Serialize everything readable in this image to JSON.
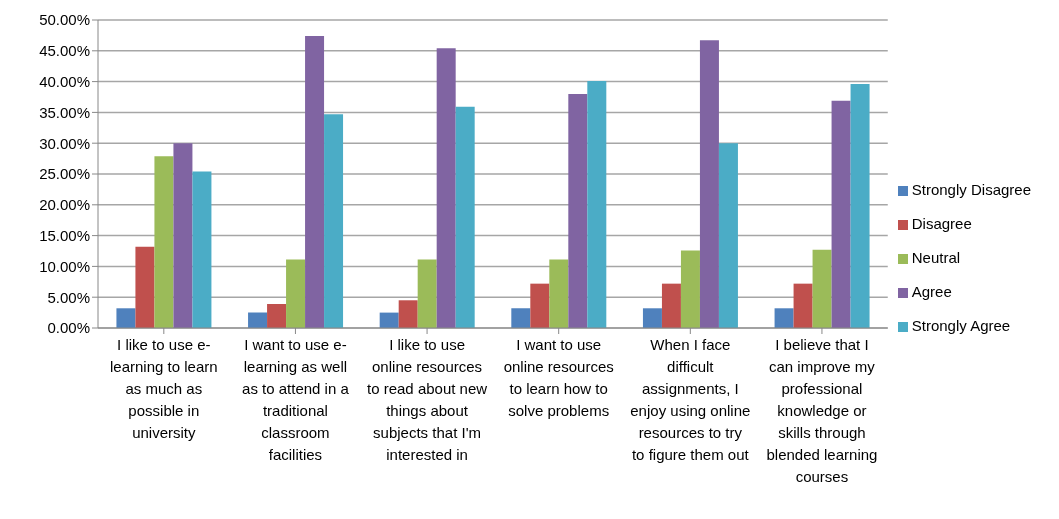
{
  "chart_data": {
    "type": "bar",
    "categories": [
      "I like to use e-learning to learn as much as possible in university",
      "I want to use e-learning as well as to attend in a traditional classroom facilities",
      "I like to use online resources to read about new things about subjects that I'm interested in",
      "I want to use online resources to learn how to solve problems",
      "When I face difficult assignments, I enjoy using online resources to try to figure them out",
      "I believe that I can improve my professional knowledge or skills through blended learning courses"
    ],
    "series": [
      {
        "name": "Strongly Disagree",
        "color": "#4f81bd",
        "values": [
          3.2,
          2.5,
          2.5,
          3.2,
          3.2,
          3.2
        ]
      },
      {
        "name": "Disagree",
        "color": "#c0504d",
        "values": [
          13.2,
          3.9,
          4.5,
          7.2,
          7.2,
          7.2
        ]
      },
      {
        "name": "Neutral",
        "color": "#9bbb59",
        "values": [
          27.9,
          11.1,
          11.1,
          11.1,
          12.6,
          12.7
        ]
      },
      {
        "name": "Agree",
        "color": "#8064a2",
        "values": [
          30.0,
          47.4,
          45.4,
          38.0,
          46.7,
          36.9
        ]
      },
      {
        "name": "Strongly Agree",
        "color": "#4bacc6",
        "values": [
          25.4,
          34.7,
          35.9,
          40.1,
          30.0,
          39.6
        ]
      }
    ],
    "ylim": [
      0,
      50
    ],
    "yticks": [
      {
        "value": 0,
        "label": "0.00%"
      },
      {
        "value": 5,
        "label": "5.00%"
      },
      {
        "value": 10,
        "label": "10.00%"
      },
      {
        "value": 15,
        "label": "15.00%"
      },
      {
        "value": 20,
        "label": "20.00%"
      },
      {
        "value": 25,
        "label": "25.00%"
      },
      {
        "value": 30,
        "label": "30.00%"
      },
      {
        "value": 35,
        "label": "35.00%"
      },
      {
        "value": 40,
        "label": "40.00%"
      },
      {
        "value": 45,
        "label": "45.00%"
      },
      {
        "value": 50,
        "label": "50.00%"
      }
    ],
    "grid": "y",
    "legend": "right"
  }
}
